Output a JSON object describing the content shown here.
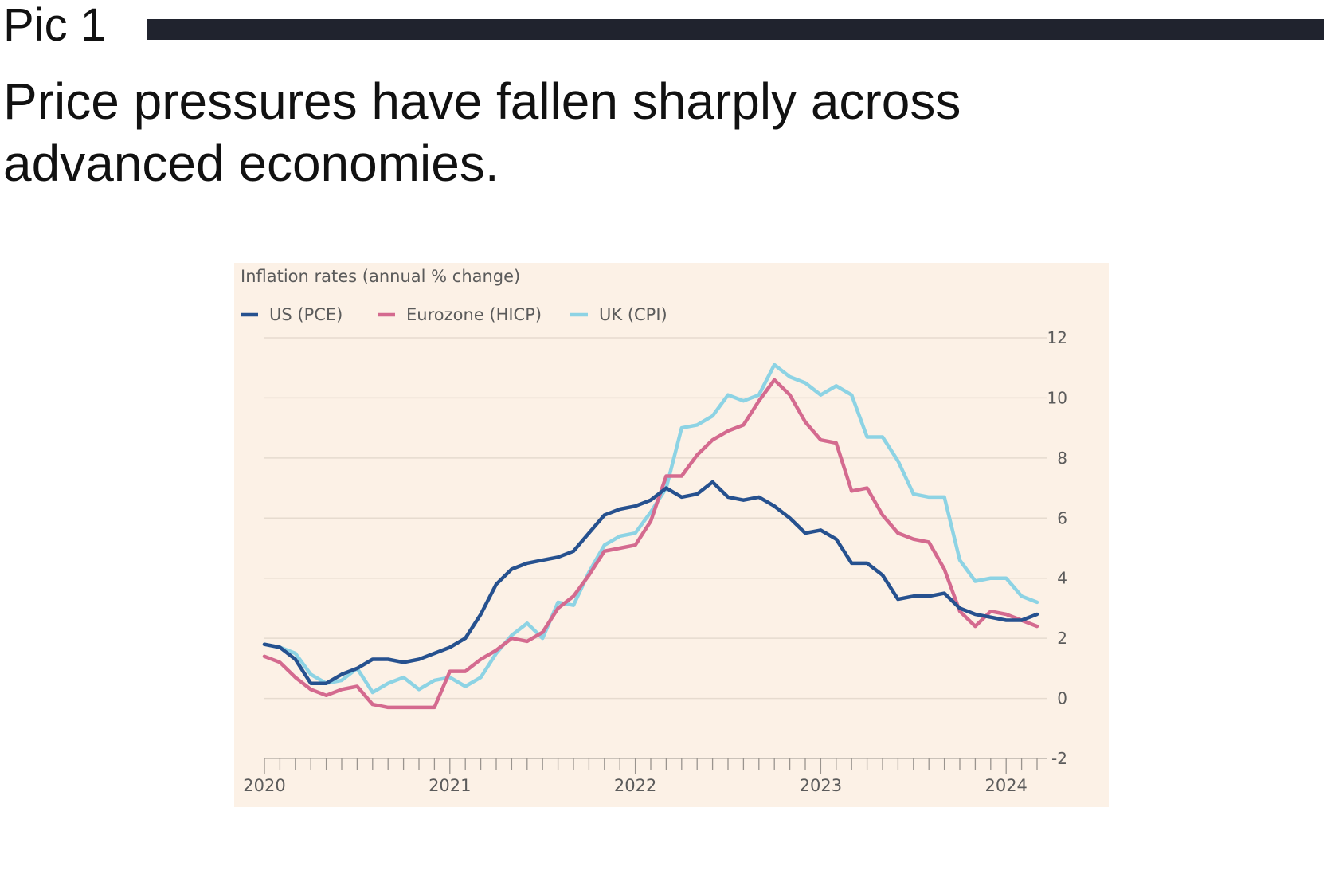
{
  "pic_label": "Pic 1",
  "headline": "Price pressures have fallen sharply across advanced economies.",
  "chart_data": {
    "type": "line",
    "title": "Inflation rates (annual % change)",
    "xlabel": "",
    "ylabel": "",
    "y_axis_side": "right",
    "ylim": [
      -2,
      12
    ],
    "y_ticks": [
      -2,
      0,
      2,
      4,
      6,
      8,
      10,
      12
    ],
    "x_ticks": [
      "2020",
      "2021",
      "2022",
      "2023",
      "2024"
    ],
    "x_range": [
      "2020-01",
      "2024-03"
    ],
    "grid": "horizontal",
    "legend_position": "top-left",
    "x": [
      "2020-01",
      "2020-02",
      "2020-03",
      "2020-04",
      "2020-05",
      "2020-06",
      "2020-07",
      "2020-08",
      "2020-09",
      "2020-10",
      "2020-11",
      "2020-12",
      "2021-01",
      "2021-02",
      "2021-03",
      "2021-04",
      "2021-05",
      "2021-06",
      "2021-07",
      "2021-08",
      "2021-09",
      "2021-10",
      "2021-11",
      "2021-12",
      "2022-01",
      "2022-02",
      "2022-03",
      "2022-04",
      "2022-05",
      "2022-06",
      "2022-07",
      "2022-08",
      "2022-09",
      "2022-10",
      "2022-11",
      "2022-12",
      "2023-01",
      "2023-02",
      "2023-03",
      "2023-04",
      "2023-05",
      "2023-06",
      "2023-07",
      "2023-08",
      "2023-09",
      "2023-10",
      "2023-11",
      "2023-12",
      "2024-01",
      "2024-02",
      "2024-03"
    ],
    "series": [
      {
        "name": "US (PCE)",
        "color": "#26518f",
        "values": [
          1.8,
          1.7,
          1.3,
          0.5,
          0.5,
          0.8,
          1.0,
          1.3,
          1.3,
          1.2,
          1.3,
          1.5,
          1.7,
          2.0,
          2.8,
          3.8,
          4.3,
          4.5,
          4.6,
          4.7,
          4.9,
          5.5,
          6.1,
          6.3,
          6.4,
          6.6,
          7.0,
          6.7,
          6.8,
          7.2,
          6.7,
          6.6,
          6.7,
          6.4,
          6.0,
          5.5,
          5.6,
          5.3,
          4.5,
          4.5,
          4.1,
          3.3,
          3.4,
          3.4,
          3.5,
          3.0,
          2.8,
          2.7,
          2.6,
          2.6,
          2.8
        ]
      },
      {
        "name": "Eurozone (HICP)",
        "color": "#d46a8f",
        "values": [
          1.4,
          1.2,
          0.7,
          0.3,
          0.1,
          0.3,
          0.4,
          -0.2,
          -0.3,
          -0.3,
          -0.3,
          -0.3,
          0.9,
          0.9,
          1.3,
          1.6,
          2.0,
          1.9,
          2.2,
          3.0,
          3.4,
          4.1,
          4.9,
          5.0,
          5.1,
          5.9,
          7.4,
          7.4,
          8.1,
          8.6,
          8.9,
          9.1,
          9.9,
          10.6,
          10.1,
          9.2,
          8.6,
          8.5,
          6.9,
          7.0,
          6.1,
          5.5,
          5.3,
          5.2,
          4.3,
          2.9,
          2.4,
          2.9,
          2.8,
          2.6,
          2.4
        ]
      },
      {
        "name": "UK (CPI)",
        "color": "#8dd3e4",
        "values": [
          1.8,
          1.7,
          1.5,
          0.8,
          0.5,
          0.6,
          1.0,
          0.2,
          0.5,
          0.7,
          0.3,
          0.6,
          0.7,
          0.4,
          0.7,
          1.5,
          2.1,
          2.5,
          2.0,
          3.2,
          3.1,
          4.2,
          5.1,
          5.4,
          5.5,
          6.2,
          7.0,
          9.0,
          9.1,
          9.4,
          10.1,
          9.9,
          10.1,
          11.1,
          10.7,
          10.5,
          10.1,
          10.4,
          10.1,
          8.7,
          8.7,
          7.9,
          6.8,
          6.7,
          6.7,
          4.6,
          3.9,
          4.0,
          4.0,
          3.4,
          3.2
        ]
      }
    ]
  }
}
